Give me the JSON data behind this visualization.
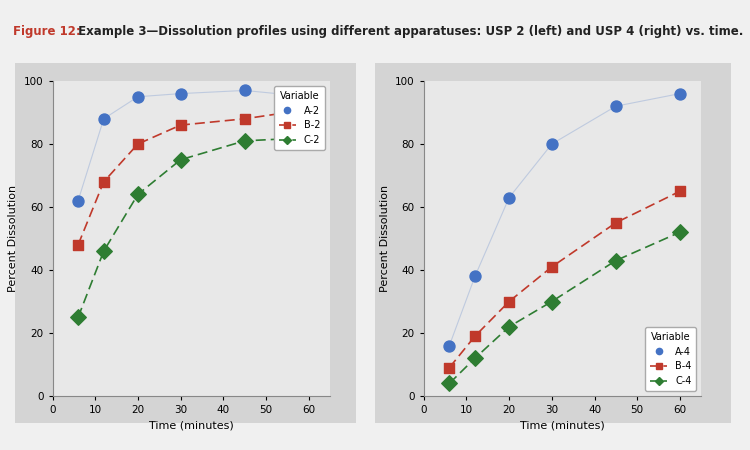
{
  "title_prefix": "Figure 12:",
  "title_text": " Example 3—Dissolution profiles using different apparatuses: USP 2 (left) and USP 4 (right) vs. time.",
  "title_prefix_color": "#c0392b",
  "title_text_color": "#222222",
  "fig_bg_color": "#f0f0f0",
  "outer_bg_color": "#d4d4d4",
  "plot_bg_color": "#e8e8e8",
  "xlabel": "Time (minutes)",
  "ylabel": "Percent Dissolution",
  "xlim": [
    0,
    65
  ],
  "ylim": [
    0,
    100
  ],
  "xticks": [
    0,
    10,
    20,
    30,
    40,
    50,
    60
  ],
  "yticks": [
    0,
    20,
    40,
    60,
    80,
    100
  ],
  "usp2": {
    "time": [
      6,
      12,
      20,
      30,
      45,
      60
    ],
    "A2": [
      62,
      88,
      95,
      96,
      97,
      95
    ],
    "B2": [
      48,
      68,
      80,
      86,
      88,
      91
    ],
    "C2": [
      25,
      46,
      64,
      75,
      81,
      82
    ],
    "legend_labels": [
      "A-2",
      "B-2",
      "C-2"
    ]
  },
  "usp4": {
    "time": [
      6,
      12,
      20,
      30,
      45,
      60
    ],
    "A4": [
      16,
      38,
      63,
      80,
      92,
      96
    ],
    "B4": [
      9,
      19,
      30,
      41,
      55,
      65
    ],
    "C4": [
      4,
      12,
      22,
      30,
      43,
      52
    ],
    "legend_labels": [
      "A-4",
      "B-4",
      "C-4"
    ]
  },
  "color_A": "#4472c4",
  "color_B": "#c0392b",
  "color_C": "#2e7d32",
  "marker_A": "o",
  "marker_B": "s",
  "marker_C": "D",
  "marker_size": 5,
  "legend_title": "Variable",
  "legend_fontsize": 7,
  "axis_label_fontsize": 8,
  "tick_fontsize": 7.5,
  "title_fontsize": 8.5
}
